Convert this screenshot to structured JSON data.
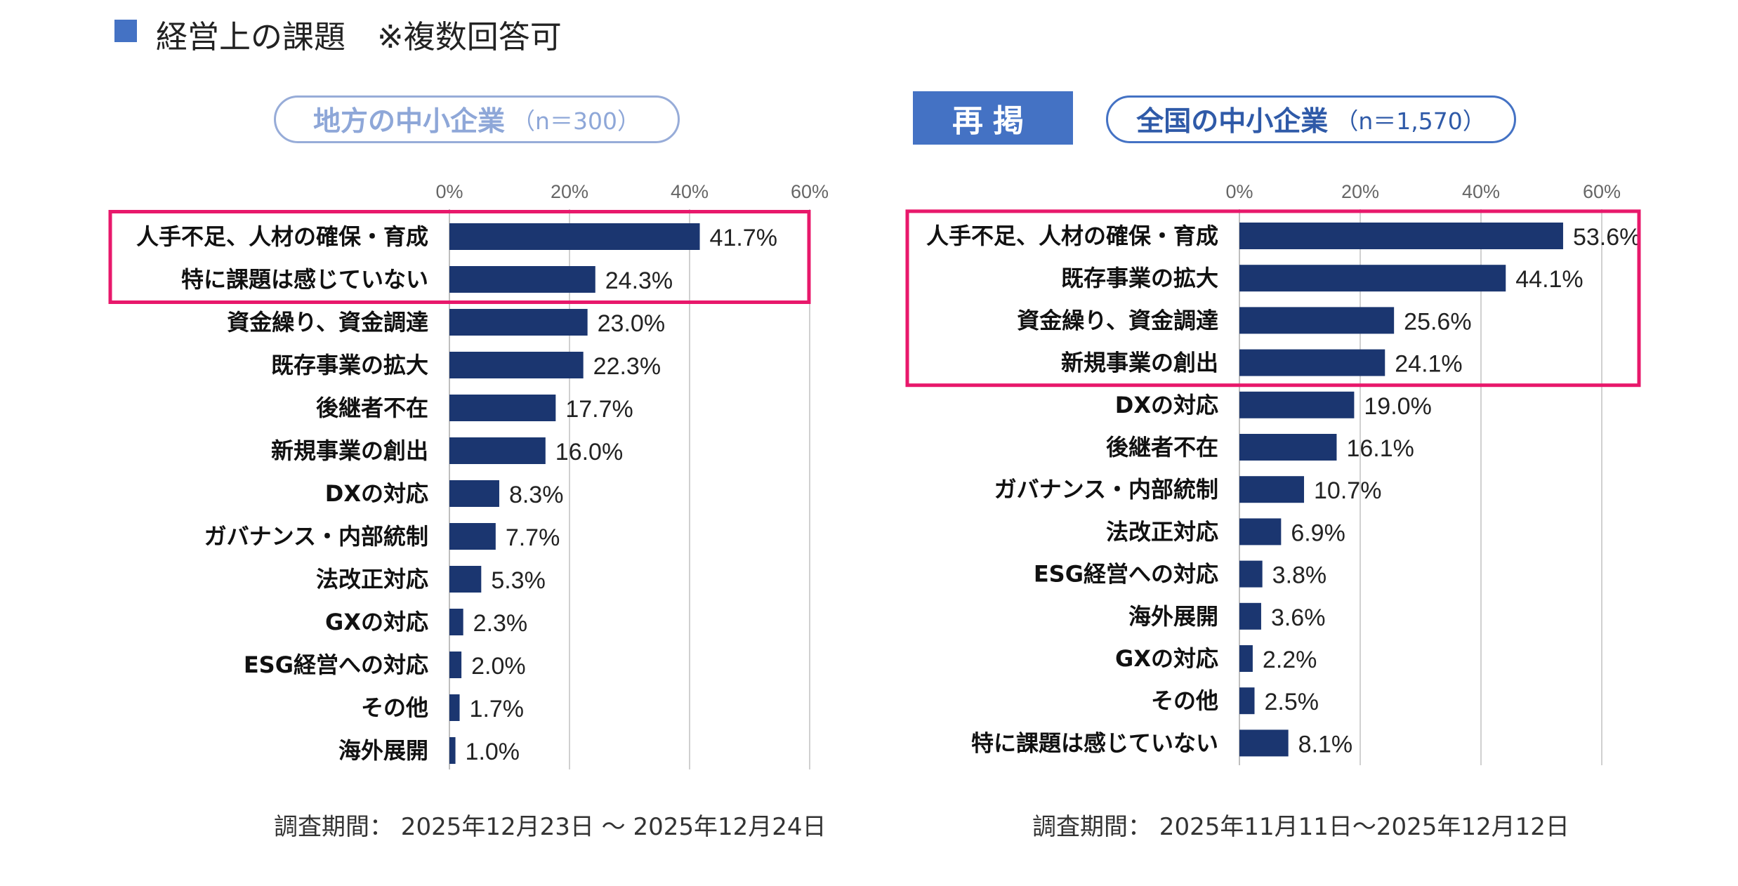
{
  "legend": {
    "label": "経営上の課題　※複数回答可",
    "color": "#4472c4"
  },
  "left_panel": {
    "title_main": "地方の中小企業",
    "title_sub": "（n＝300）",
    "footer": "調査期間：  2025年12月23日 〜 2025年12月24日"
  },
  "right_panel": {
    "badge": "再掲",
    "title_main": "全国の中小企業",
    "title_sub": "（n＝1,570）",
    "footer": "調査期間：  2025年11月11日〜2025年12月12日"
  },
  "colors": {
    "bar": "#1b3670",
    "highlight": "#e8186b",
    "grid": "#d0d0d0"
  },
  "chart_data": [
    {
      "type": "bar",
      "orientation": "horizontal",
      "title": "地方の中小企業（n＝300）",
      "xlim": [
        0,
        60
      ],
      "ticks": [
        "0%",
        "20%",
        "40%",
        "60%"
      ],
      "highlight_count": 2,
      "categories": [
        "人手不足、人材の確保・育成",
        "特に課題は感じていない",
        "資金繰り、資金調達",
        "既存事業の拡大",
        "後継者不在",
        "新規事業の創出",
        "DXの対応",
        "ガバナンス・内部統制",
        "法改正対応",
        "GXの対応",
        "ESG経営への対応",
        "その他",
        "海外展開"
      ],
      "values": [
        41.7,
        24.3,
        23.0,
        22.3,
        17.7,
        16.0,
        8.3,
        7.7,
        5.3,
        2.3,
        2.0,
        1.7,
        1.0
      ],
      "labels": [
        "41.7%",
        "24.3%",
        "23.0%",
        "22.3%",
        "17.7%",
        "16.0%",
        "8.3%",
        "7.7%",
        "5.3%",
        "2.3%",
        "2.0%",
        "1.7%",
        "1.0%"
      ]
    },
    {
      "type": "bar",
      "orientation": "horizontal",
      "title": "全国の中小企業（n＝1,570）",
      "xlim": [
        0,
        60
      ],
      "ticks": [
        "0%",
        "20%",
        "40%",
        "60%"
      ],
      "highlight_count": 4,
      "categories": [
        "人手不足、人材の確保・育成",
        "既存事業の拡大",
        "資金繰り、資金調達",
        "新規事業の創出",
        "DXの対応",
        "後継者不在",
        "ガバナンス・内部統制",
        "法改正対応",
        "ESG経営への対応",
        "海外展開",
        "GXの対応",
        "その他",
        "特に課題は感じていない"
      ],
      "values": [
        53.6,
        44.1,
        25.6,
        24.1,
        19.0,
        16.1,
        10.7,
        6.9,
        3.8,
        3.6,
        2.2,
        2.5,
        8.1
      ],
      "labels": [
        "53.6%",
        "44.1%",
        "25.6%",
        "24.1%",
        "19.0%",
        "16.1%",
        "10.7%",
        "6.9%",
        "3.8%",
        "3.6%",
        "2.2%",
        "2.5%",
        "8.1%"
      ]
    }
  ]
}
